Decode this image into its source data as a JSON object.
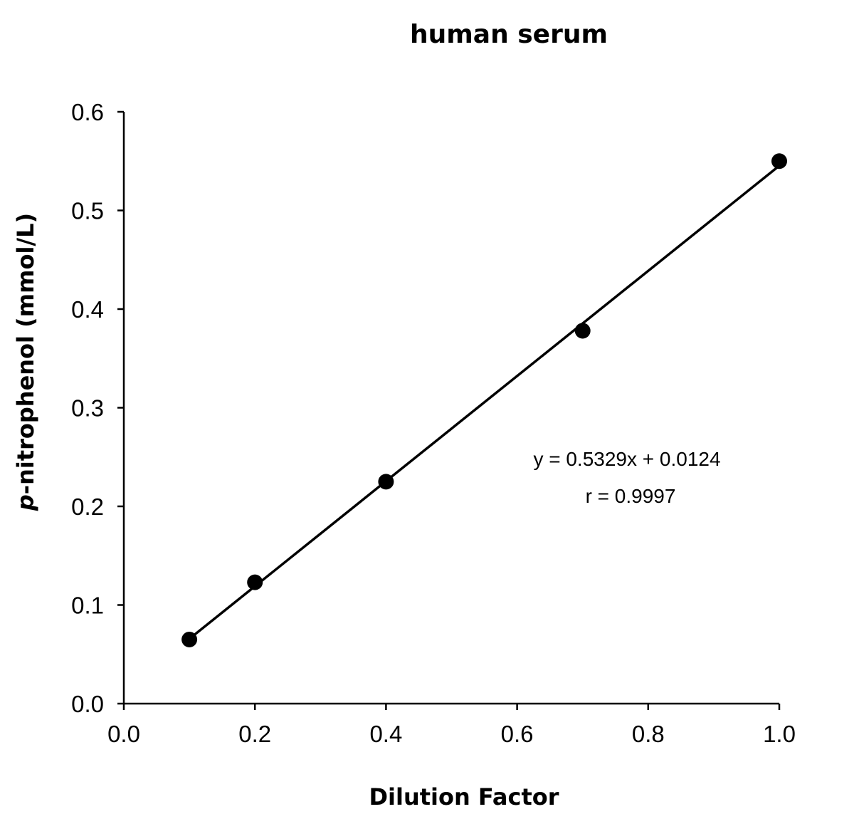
{
  "chart_data": {
    "type": "scatter",
    "title": "human serum",
    "xlabel": "Dilution Factor",
    "ylabel": "p-nitrophenol (mmol/L)",
    "ylabel_italic_prefix": "p",
    "ylabel_rest": "-nitrophenol (mmol/L)",
    "xlim": [
      0.0,
      1.0
    ],
    "ylim": [
      0.0,
      0.6
    ],
    "xticks": [
      0.0,
      0.2,
      0.4,
      0.6,
      0.8,
      1.0
    ],
    "xtick_labels": [
      "0.0",
      "0.2",
      "0.4",
      "0.6",
      "0.8",
      "1.0"
    ],
    "yticks": [
      0.0,
      0.1,
      0.2,
      0.3,
      0.4,
      0.5,
      0.6
    ],
    "ytick_labels": [
      "0.0",
      "0.1",
      "0.2",
      "0.3",
      "0.4",
      "0.5",
      "0.6"
    ],
    "grid": false,
    "series": [
      {
        "x": [
          0.1,
          0.2,
          0.4,
          0.7,
          1.0
        ],
        "y": [
          0.065,
          0.123,
          0.225,
          0.378,
          0.55
        ],
        "color": "#000000",
        "marker": "circle"
      }
    ],
    "trendline": {
      "slope": 0.5329,
      "intercept": 0.0124,
      "x_range": [
        0.1,
        1.0
      ],
      "color": "#000000"
    },
    "annotations": [
      "y = 0.5329x + 0.0124",
      "r = 0.9997"
    ]
  }
}
